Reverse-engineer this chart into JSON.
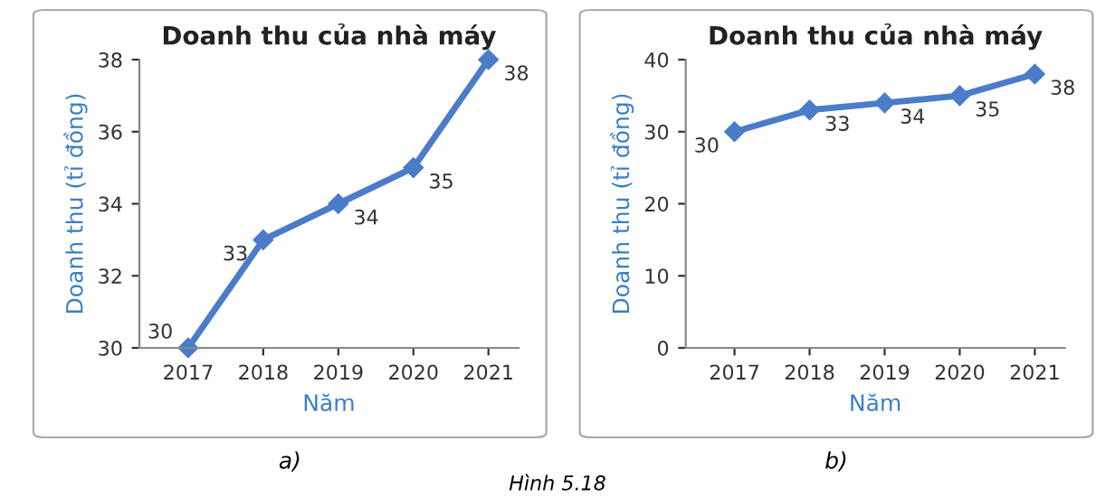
{
  "chart_data": [
    {
      "type": "line",
      "title": "Doanh thu của nhà máy",
      "xlabel": "Năm",
      "ylabel": "Doanh thu (tỉ đồng)",
      "categories": [
        "2017",
        "2018",
        "2019",
        "2020",
        "2021"
      ],
      "series": [
        {
          "color": "#4a7cc9",
          "values": [
            30,
            33,
            34,
            35,
            38
          ]
        }
      ],
      "ylim": [
        30,
        38
      ],
      "yticks": [
        30,
        32,
        34,
        36,
        38
      ],
      "grid": false,
      "legend": false,
      "marker": "diamond",
      "line_style": "solid",
      "data_labels": true,
      "annotations": [
        "a)"
      ]
    },
    {
      "type": "line",
      "title": "Doanh thu của nhà máy",
      "xlabel": "Năm",
      "ylabel": "Doanh thu (tỉ đồng)",
      "categories": [
        "2017",
        "2018",
        "2019",
        "2020",
        "2021"
      ],
      "series": [
        {
          "color": "#4a7cc9",
          "values": [
            30,
            33,
            34,
            35,
            38
          ]
        }
      ],
      "ylim": [
        0,
        40
      ],
      "yticks": [
        0,
        10,
        20,
        30,
        40
      ],
      "grid": false,
      "legend": false,
      "marker": "diamond",
      "line_style": "solid",
      "data_labels": true,
      "annotations": [
        "b)",
        "Hình 5.18"
      ]
    }
  ]
}
